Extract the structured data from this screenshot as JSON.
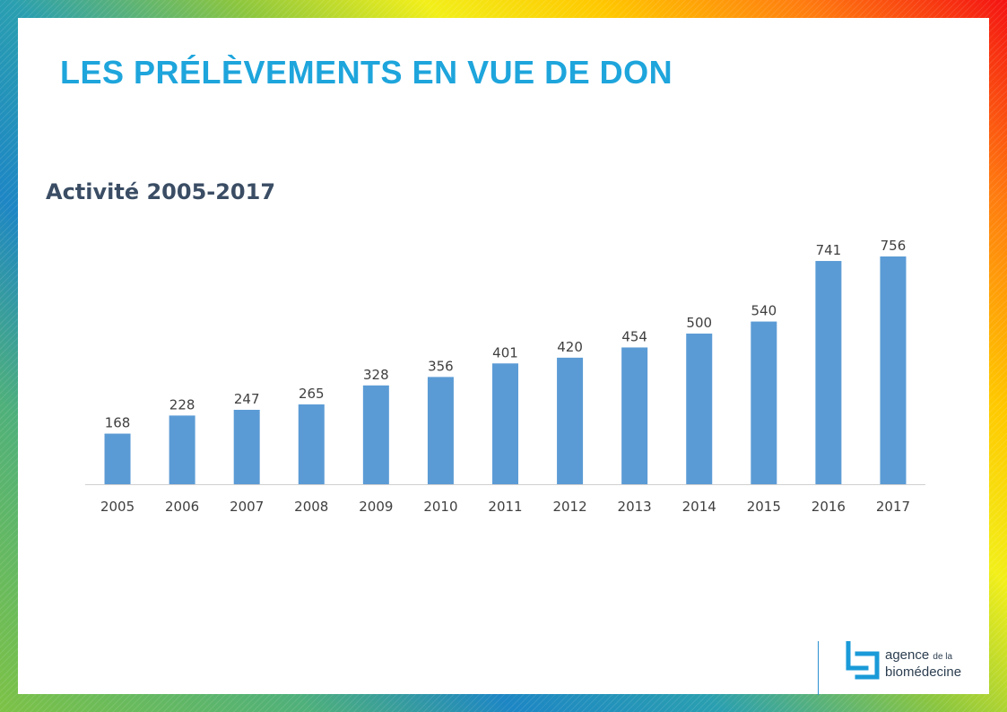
{
  "slide": {
    "title": "LES PRÉLÈVEMENTS EN VUE DE DON"
  },
  "chart_data": {
    "type": "bar",
    "title": "Activité 2005-2017",
    "categories": [
      "2005",
      "2006",
      "2007",
      "2008",
      "2009",
      "2010",
      "2011",
      "2012",
      "2013",
      "2014",
      "2015",
      "2016",
      "2017"
    ],
    "values": [
      168,
      228,
      247,
      265,
      328,
      356,
      401,
      420,
      454,
      500,
      540,
      741,
      756
    ],
    "xlabel": "",
    "ylabel": "",
    "ylim": [
      0,
      756
    ],
    "grid": false,
    "legend": "none",
    "bar_color": "#5b9bd5",
    "data_labels": true
  },
  "logo": {
    "line1_main": "agence",
    "line1_small": "de la",
    "line2": "biomédecine",
    "color": "#1a9ad8"
  }
}
